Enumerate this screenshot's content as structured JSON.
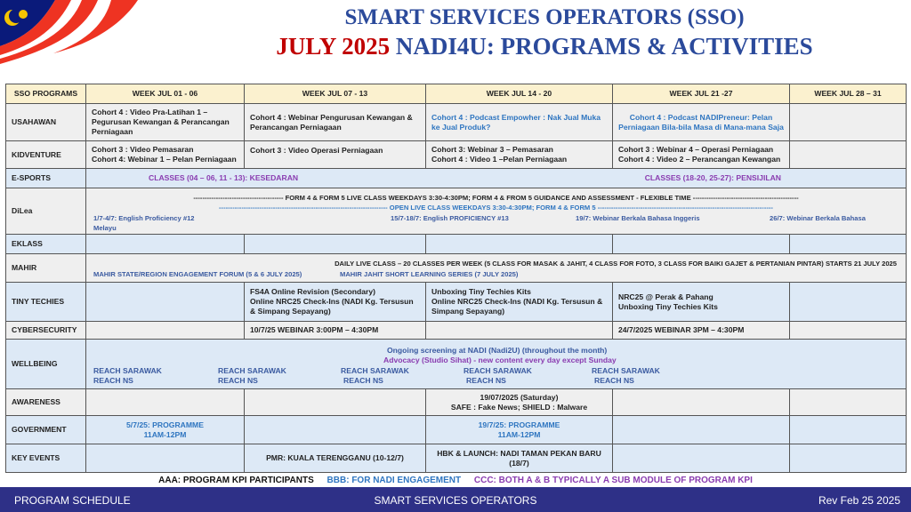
{
  "header": {
    "title_line1": "SMART SERVICES OPERATORS (SSO)",
    "title_line2_red": "JULY 2025",
    "title_line2_blue": " NADI4U: PROGRAMS & ACTIVITIES"
  },
  "colors": {
    "title_blue": "#2b4a9b",
    "title_red": "#c00000",
    "header_fill": "#fbf1cf",
    "row_gray": "#efefef",
    "row_blue": "#dde9f6",
    "footer": "#2e3087"
  },
  "table": {
    "columns": [
      "SSO PROGRAMS",
      "WEEK JUL 01 - 06",
      "WEEK JUL 07 - 13",
      "WEEK JUL 14 - 20",
      "WEEK JUL 21 -27",
      "WEEK JUL 28  – 31"
    ],
    "usahawan": {
      "label": "USAHAWAN",
      "w1": "Cohort 4 : Video Pra-Latihan 1 – Pegurusan Kewangan & Perancangan Perniagaan",
      "w2": "Cohort 4 : Webinar Pengurusan Kewangan & Perancangan Perniagaan",
      "w3": "Cohort 4 : Podcast Empowher : Nak Jual Muka ke Jual Produk?",
      "w4": "Cohort 4 : Podcast NADIPreneur: Pelan Perniagaan Bila-bila Masa di Mana-mana Saja"
    },
    "kidventure": {
      "label": "KIDVENTURE",
      "w1a": "Cohort 3 : Video Pemasaran",
      "w1b": "Cohort 4: Webinar 1 – Pelan Perniagaan",
      "w2": "Cohort 3 : Video Operasi Perniagaan",
      "w3a": "Cohort 3: Webinar 3 – Pemasaran",
      "w3b": "Cohort 4 : Video 1 –Pelan Perniagaan",
      "w4a": "Cohort 3 : Webinar 4 – Operasi Perniagaan",
      "w4b": "Cohort 4 : Video 2 – Perancangan Kewangan"
    },
    "esports": {
      "label": "E-SPORTS",
      "span1": "CLASSES (04 – 06, 11 - 13): KESEDARAN",
      "span2": "CLASSES (18-20, 25-27): PENSIJILAN"
    },
    "dilea": {
      "label": "DiLea",
      "line1": "---------------------------------------- FORM 4 & FORM 5 LIVE CLASS WEEKDAYS 3:30-4:30PM; FORM 4 & FROM 5 GUIDANCE AND ASSESSMENT - FLEXIBLE TIME -----------------------------------------------",
      "line2": "--------------------------------------------------------------------------- OPEN LIVE CLASS WEEKDAYS 3:30-4:30PM; FORM 4 & FORM 5 ------------------------------------------------------------------------------",
      "e1": "1/7-4/7: English Proficiency #12",
      "e1b": "Melayu",
      "e2": "15/7-18/7: English PROFICIENCY #13",
      "e3": "19/7: Webinar Berkala Bahasa Inggeris",
      "e4": "26/7: Webinar Berkala Bahasa"
    },
    "eklass": {
      "label": "EKLASS"
    },
    "mahir": {
      "label": "MAHIR",
      "line1": "DAILY LIVE CLASS – 20 CLASSES PER WEEK (5 CLASS FOR MASAK & JAHIT, 4 CLASS FOR FOTO, 3 CLASS FOR BAIKI GAJET & PERTANIAN PINTAR) STARTS 21 JULY 2025",
      "e1": "MAHIR STATE/REGION ENGAGEMENT FORUM (5 & 6 JULY 2025)",
      "e2": "MAHIR JAHIT SHORT LEARNING SERIES (7 JULY 2025)"
    },
    "tiny": {
      "label": "TINY TECHIES",
      "w2": [
        "FS4A Online Revision (Secondary)",
        "Online NRC25 Check-Ins (NADI Kg. Tersusun & Simpang Sepayang)"
      ],
      "w3": [
        "Unboxing Tiny Techies Kits",
        "Online NRC25 Check-Ins (NADI Kg. Tersusun & Simpang Sepayang)"
      ],
      "w4": [
        "NRC25 @ Perak & Pahang",
        "Unboxing Tiny Techies Kits"
      ]
    },
    "cyber": {
      "label": "CYBERSECURITY",
      "w2": "10/7/25 WEBINAR 3:00PM – 4:30PM",
      "w4": "24/7/2025 WEBINAR 3PM – 4:30PM"
    },
    "wellbeing": {
      "label": "WELLBEING",
      "line1": "Ongoing screening  at NADI (Nadi2U) (throughout the month)",
      "line2": "Advocacy (Studio Sihat) - new content every day except Sunday",
      "reach_a": "REACH SARAWAK",
      "reach_b": "REACH NS"
    },
    "awareness": {
      "label": "AWARENESS",
      "w3a": "19/07/2025 (Saturday)",
      "w3b": "SAFE : Fake News; SHIELD : Malware"
    },
    "government": {
      "label": "GOVERNMENT",
      "w1a": "5/7/25: PROGRAMME",
      "w1b": "11AM-12PM",
      "w3a": "19/7/25: PROGRAMME",
      "w3b": "11AM-12PM"
    },
    "key": {
      "label": "KEY EVENTS",
      "w2": "PMR: KUALA TERENGGANU (10-12/7)",
      "w3": "HBK & LAUNCH: NADI TAMAN PEKAN BARU (18/7)"
    }
  },
  "legend": {
    "aaa": "AAA: PROGRAM KPI PARTICIPANTS",
    "bbb": "BBB:  FOR NADI ENGAGEMENT",
    "ccc": "CCC:  BOTH  A & B  TYPICALLY A SUB MODULE OF PROGRAM KPI"
  },
  "footer": {
    "left": "PROGRAM SCHEDULE",
    "center": "SMART SERVICES OPERATORS",
    "right": "Rev  Feb 25 2025"
  }
}
